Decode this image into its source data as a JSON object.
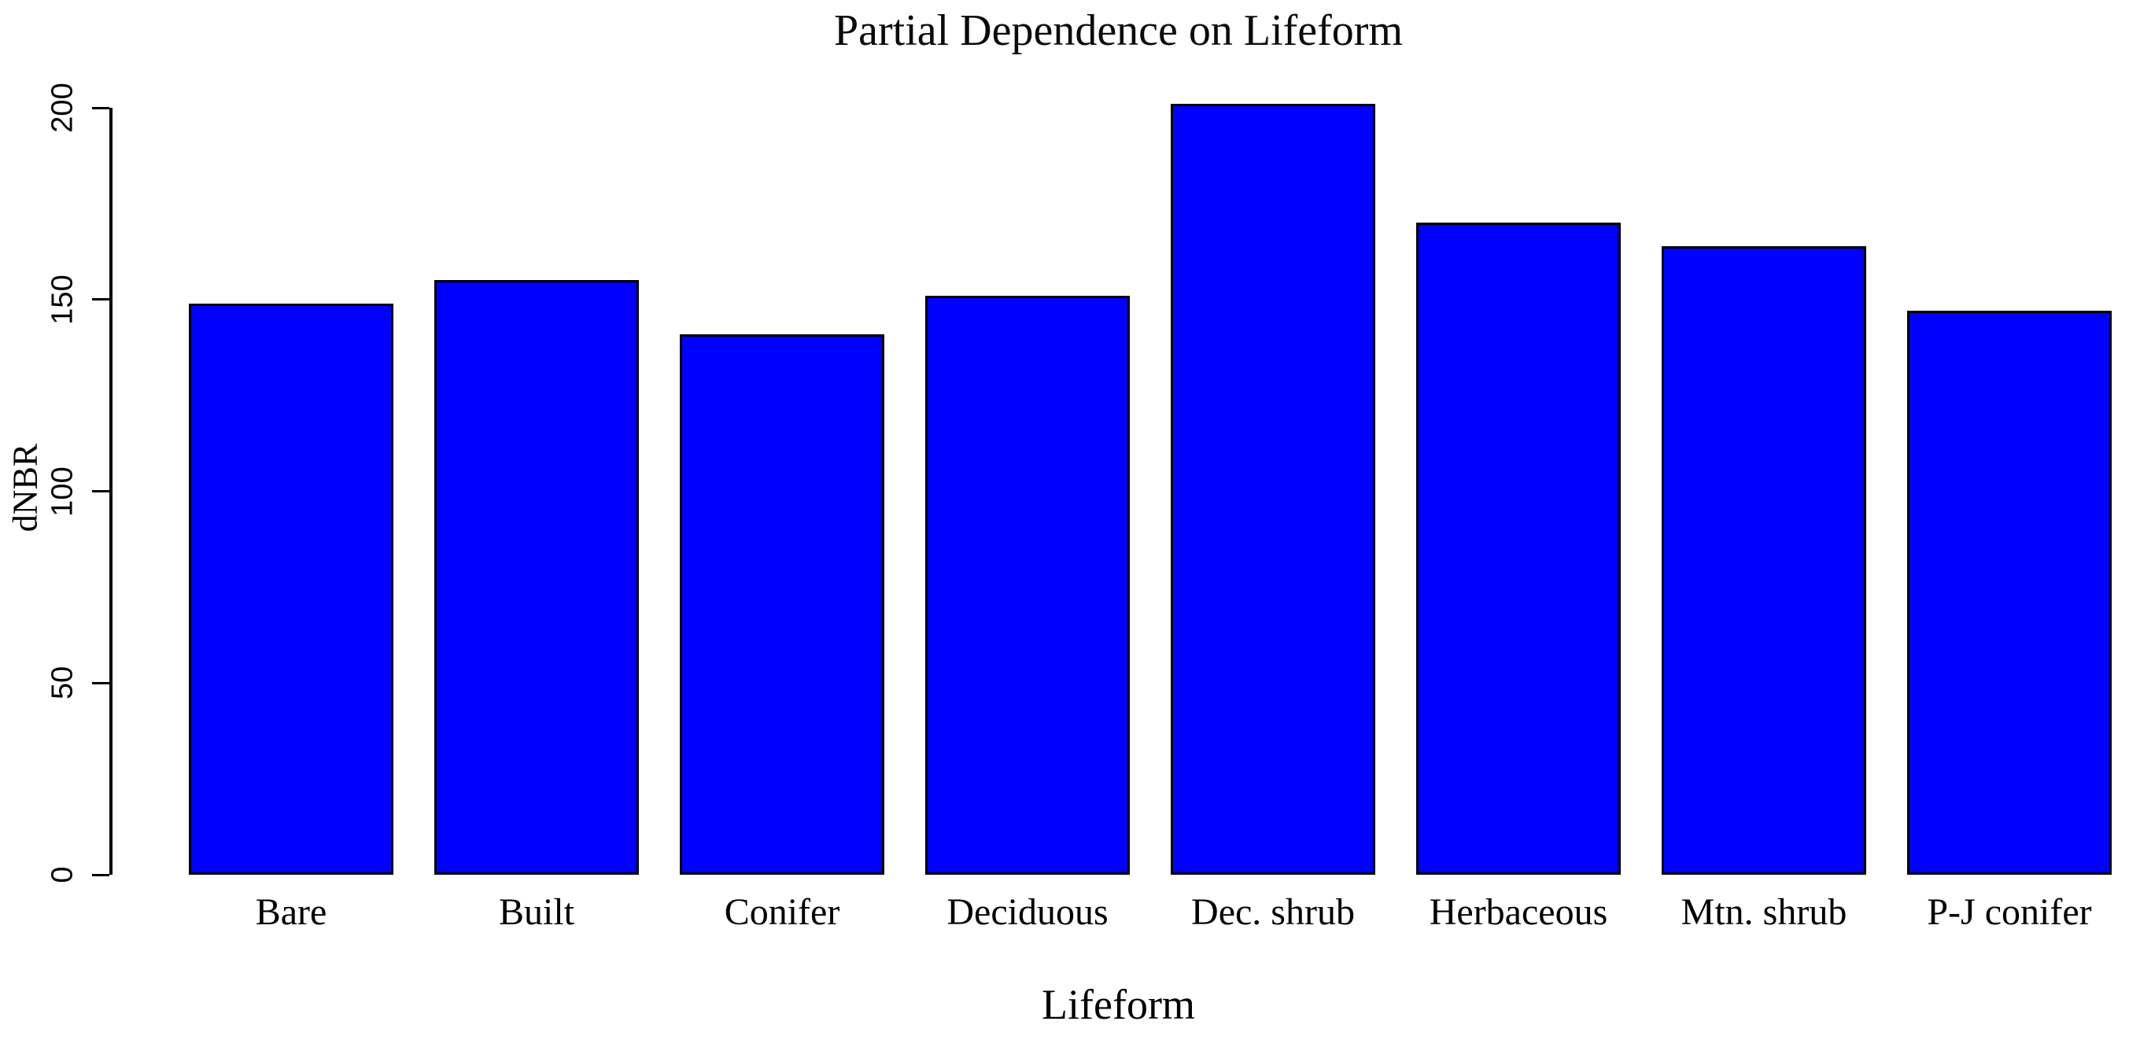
{
  "chart_data": {
    "type": "bar",
    "title": "Partial Dependence on Lifeform",
    "xlabel": "Lifeform",
    "ylabel": "dNBR",
    "categories": [
      "Bare",
      "Built",
      "Conifer",
      "Deciduous",
      "Dec. shrub",
      "Herbaceous",
      "Mtn. shrub",
      "P-J conifer"
    ],
    "values": [
      149,
      155,
      141,
      151,
      201,
      170,
      164,
      147
    ],
    "ylim": [
      0,
      200
    ],
    "yticks": [
      0,
      50,
      100,
      150,
      200
    ],
    "bar_color": "#0000FF",
    "bar_border_color": "#000000",
    "axis_color": "#000000",
    "background_color": "#FFFFFF",
    "grid": false,
    "legend": "none"
  }
}
